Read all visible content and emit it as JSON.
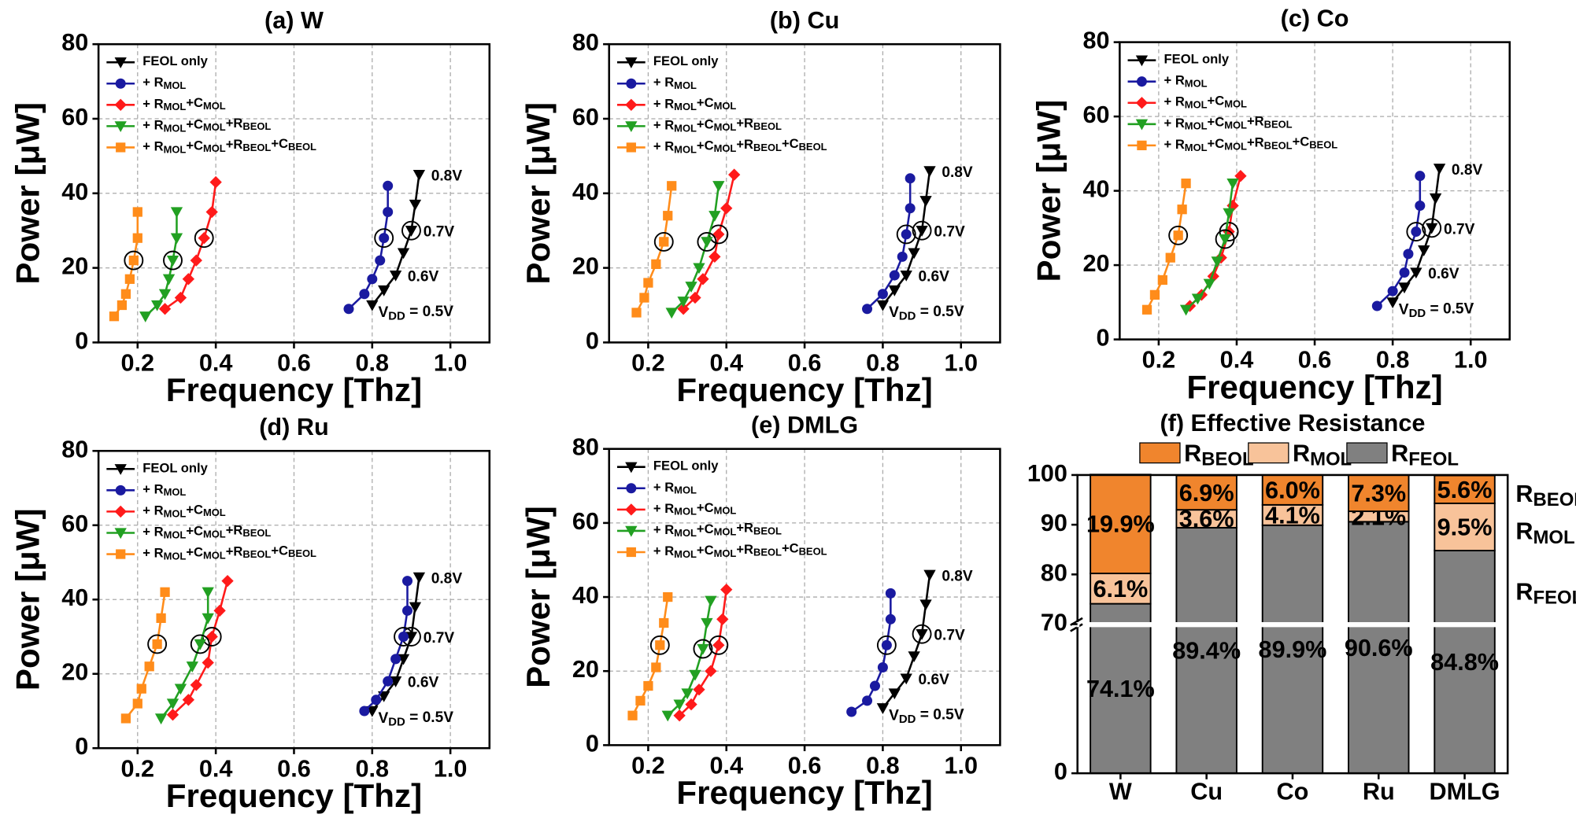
{
  "chart_data": [
    {
      "type": "line",
      "title": "(a) W",
      "x_label": "Frequency [Thz]",
      "y_label": "Power [μW]",
      "xlim": [
        0.1,
        1.1
      ],
      "xticks": [
        0.2,
        0.4,
        0.6,
        0.8,
        {
          "value": 1.0,
          "label": "1.0"
        }
      ],
      "ylim": [
        0,
        80
      ],
      "yticks": [
        0,
        20,
        40,
        60,
        80
      ],
      "grid": true,
      "legend": "upper left",
      "annotations": [
        "0.8V",
        "0.7V",
        "0.6V",
        "VDD = 0.5V"
      ],
      "series": [
        {
          "name": "FEOL only",
          "color": "#000000",
          "marker": "triangle-down",
          "x": [
            0.8,
            0.83,
            0.86,
            0.88,
            0.9,
            0.91,
            0.92
          ],
          "values": [
            10,
            14,
            18,
            24,
            30,
            37,
            45
          ]
        },
        {
          "name": "+ RMOL",
          "color": "#1a1aa0",
          "marker": "circle",
          "x": [
            0.74,
            0.78,
            0.8,
            0.82,
            0.83,
            0.84,
            0.84
          ],
          "values": [
            9,
            13,
            17,
            22,
            28,
            35,
            42
          ]
        },
        {
          "name": "+ RMOL+CMOL",
          "color": "#ff1a1a",
          "marker": "diamond",
          "x": [
            0.27,
            0.31,
            0.33,
            0.35,
            0.37,
            0.39,
            0.4
          ],
          "values": [
            9,
            12,
            17,
            22,
            28,
            35,
            43
          ]
        },
        {
          "name": "+ RMOL+CMOL+RBEOL",
          "color": "#22a022",
          "marker": "triangle-down",
          "x": [
            0.22,
            0.25,
            0.27,
            0.28,
            0.29,
            0.3,
            0.3
          ],
          "values": [
            7,
            10,
            13,
            17,
            22,
            28,
            35
          ]
        },
        {
          "name": "+ RMOL+CMOL+RBEOL+CBEOL",
          "color": "#ff8c1a",
          "marker": "square",
          "x": [
            0.14,
            0.16,
            0.17,
            0.18,
            0.19,
            0.2,
            0.2
          ],
          "values": [
            7,
            10,
            13,
            17,
            22,
            28,
            35
          ]
        }
      ]
    },
    {
      "type": "line",
      "title": "(b) Cu",
      "x_label": "Frequency [Thz]",
      "y_label": "Power [μW]",
      "xlim": [
        0.1,
        1.1
      ],
      "xticks": [
        0.2,
        0.4,
        0.6,
        0.8,
        {
          "value": 1.0,
          "label": "1.0"
        }
      ],
      "ylim": [
        0,
        80
      ],
      "yticks": [
        0,
        20,
        40,
        60,
        80
      ],
      "grid": true,
      "legend": "upper left",
      "annotations": [
        "0.8V",
        "0.7V",
        "0.6V",
        "VDD = 0.5V"
      ],
      "series": [
        {
          "name": "FEOL only",
          "color": "#000000",
          "marker": "triangle-down",
          "x": [
            0.8,
            0.83,
            0.86,
            0.88,
            0.9,
            0.91,
            0.92
          ],
          "values": [
            10,
            14,
            18,
            24,
            30,
            38,
            46
          ]
        },
        {
          "name": "+ RMOL",
          "color": "#1a1aa0",
          "marker": "circle",
          "x": [
            0.76,
            0.8,
            0.83,
            0.85,
            0.86,
            0.87,
            0.87
          ],
          "values": [
            9,
            13,
            18,
            23,
            29,
            36,
            44
          ]
        },
        {
          "name": "+ RMOL+CMOL",
          "color": "#ff1a1a",
          "marker": "diamond",
          "x": [
            0.29,
            0.32,
            0.34,
            0.37,
            0.38,
            0.4,
            0.42
          ],
          "values": [
            9,
            12,
            17,
            23,
            29,
            36,
            45
          ]
        },
        {
          "name": "+ RMOL+CMOL+RBEOL",
          "color": "#22a022",
          "marker": "triangle-down",
          "x": [
            0.26,
            0.29,
            0.31,
            0.33,
            0.35,
            0.37,
            0.38
          ],
          "values": [
            8,
            11,
            15,
            20,
            27,
            34,
            42
          ]
        },
        {
          "name": "+ RMOL+CMOL+RBEOL+CBEOL",
          "color": "#ff8c1a",
          "marker": "square",
          "x": [
            0.17,
            0.19,
            0.2,
            0.22,
            0.24,
            0.25,
            0.26
          ],
          "values": [
            8,
            12,
            16,
            21,
            27,
            34,
            42
          ]
        }
      ]
    },
    {
      "type": "line",
      "title": "(c) Co",
      "x_label": "Frequency [Thz]",
      "y_label": "Power [μW]",
      "xlim": [
        0.1,
        1.1
      ],
      "xticks": [
        0.2,
        0.4,
        0.6,
        0.8,
        {
          "value": 1.0,
          "label": "1.0"
        }
      ],
      "ylim": [
        0,
        80
      ],
      "yticks": [
        0,
        20,
        40,
        60,
        80
      ],
      "grid": true,
      "legend": "upper left",
      "annotations": [
        "0.8V",
        "0.7V",
        "0.6V",
        "VDD = 0.5V"
      ],
      "series": [
        {
          "name": "FEOL only",
          "color": "#000000",
          "marker": "triangle-down",
          "x": [
            0.8,
            0.83,
            0.86,
            0.88,
            0.9,
            0.91,
            0.92
          ],
          "values": [
            10,
            14,
            18,
            24,
            30,
            38,
            46
          ]
        },
        {
          "name": "+ RMOL",
          "color": "#1a1aa0",
          "marker": "circle",
          "x": [
            0.76,
            0.8,
            0.83,
            0.84,
            0.86,
            0.87,
            0.87
          ],
          "values": [
            9,
            13,
            18,
            23,
            29,
            36,
            44
          ]
        },
        {
          "name": "+ RMOL+CMOL",
          "color": "#ff1a1a",
          "marker": "diamond",
          "x": [
            0.28,
            0.31,
            0.34,
            0.36,
            0.38,
            0.39,
            0.41
          ],
          "values": [
            9,
            12,
            17,
            22,
            29,
            36,
            44
          ]
        },
        {
          "name": "+ RMOL+CMOL+RBEOL",
          "color": "#22a022",
          "marker": "triangle-down",
          "x": [
            0.27,
            0.3,
            0.33,
            0.35,
            0.37,
            0.38,
            0.39
          ],
          "values": [
            8,
            11,
            15,
            21,
            27,
            34,
            42
          ]
        },
        {
          "name": "+ RMOL+CMOL+RBEOL+CBEOL",
          "color": "#ff8c1a",
          "marker": "square",
          "x": [
            0.17,
            0.19,
            0.21,
            0.23,
            0.25,
            0.26,
            0.27
          ],
          "values": [
            8,
            12,
            16,
            22,
            28,
            35,
            42
          ]
        }
      ]
    },
    {
      "type": "line",
      "title": "(d) Ru",
      "x_label": "Frequency [Thz]",
      "y_label": "Power [μW]",
      "xlim": [
        0.1,
        1.1
      ],
      "xticks": [
        0.2,
        0.4,
        0.6,
        0.8,
        {
          "value": 1.0,
          "label": "1.0"
        }
      ],
      "ylim": [
        0,
        80
      ],
      "yticks": [
        0,
        20,
        40,
        60,
        80
      ],
      "grid": true,
      "legend": "upper left",
      "annotations": [
        "0.8V",
        "0.7V",
        "0.6V",
        "VDD = 0.5V"
      ],
      "series": [
        {
          "name": "FEOL only",
          "color": "#000000",
          "marker": "triangle-down",
          "x": [
            0.8,
            0.83,
            0.86,
            0.88,
            0.9,
            0.91,
            0.92
          ],
          "values": [
            10,
            14,
            18,
            24,
            30,
            38,
            46
          ]
        },
        {
          "name": "+ RMOL",
          "color": "#1a1aa0",
          "marker": "circle",
          "x": [
            0.78,
            0.81,
            0.84,
            0.86,
            0.88,
            0.89,
            0.89
          ],
          "values": [
            10,
            13,
            18,
            24,
            30,
            37,
            45
          ]
        },
        {
          "name": "+ RMOL+CMOL",
          "color": "#ff1a1a",
          "marker": "diamond",
          "x": [
            0.29,
            0.33,
            0.35,
            0.38,
            0.39,
            0.41,
            0.43
          ],
          "values": [
            9,
            13,
            17,
            23,
            30,
            37,
            45
          ]
        },
        {
          "name": "+ RMOL+CMOL+RBEOL",
          "color": "#22a022",
          "marker": "triangle-down",
          "x": [
            0.26,
            0.29,
            0.31,
            0.34,
            0.36,
            0.38,
            0.38
          ],
          "values": [
            8,
            12,
            16,
            22,
            28,
            35,
            42
          ]
        },
        {
          "name": "+ RMOL+CMOL+RBEOL+CBEOL",
          "color": "#ff8c1a",
          "marker": "square",
          "x": [
            0.17,
            0.2,
            0.21,
            0.23,
            0.25,
            0.26,
            0.27
          ],
          "values": [
            8,
            12,
            16,
            22,
            28,
            35,
            42
          ]
        }
      ]
    },
    {
      "type": "line",
      "title": "(e) DMLG",
      "x_label": "Frequency [Thz]",
      "y_label": "Power [μW]",
      "xlim": [
        0.1,
        1.1
      ],
      "xticks": [
        0.2,
        0.4,
        0.6,
        0.8,
        {
          "value": 1.0,
          "label": "1.0"
        }
      ],
      "ylim": [
        0,
        80
      ],
      "yticks": [
        0,
        20,
        40,
        60,
        80
      ],
      "grid": true,
      "legend": "upper left",
      "annotations": [
        "0.8V",
        "0.7V",
        "0.6V",
        "VDD = 0.5V"
      ],
      "series": [
        {
          "name": "FEOL only",
          "color": "#000000",
          "marker": "triangle-down",
          "x": [
            0.8,
            0.83,
            0.86,
            0.88,
            0.9,
            0.91,
            0.92
          ],
          "values": [
            10,
            14,
            18,
            24,
            30,
            38,
            46
          ]
        },
        {
          "name": "+ RMOL",
          "color": "#1a1aa0",
          "marker": "circle",
          "x": [
            0.72,
            0.76,
            0.78,
            0.8,
            0.81,
            0.82,
            0.82
          ],
          "values": [
            9,
            12,
            16,
            21,
            27,
            34,
            41
          ]
        },
        {
          "name": "+ RMOL+CMOL",
          "color": "#ff1a1a",
          "marker": "diamond",
          "x": [
            0.28,
            0.31,
            0.33,
            0.36,
            0.38,
            0.39,
            0.4
          ],
          "values": [
            8,
            11,
            15,
            20,
            27,
            34,
            42
          ]
        },
        {
          "name": "+ RMOL+CMOL+RBEOL",
          "color": "#22a022",
          "marker": "triangle-down",
          "x": [
            0.25,
            0.28,
            0.3,
            0.32,
            0.34,
            0.35,
            0.36
          ],
          "values": [
            8,
            11,
            14,
            19,
            26,
            33,
            39
          ]
        },
        {
          "name": "+ RMOL+CMOL+RBEOL+CBEOL",
          "color": "#ff8c1a",
          "marker": "square",
          "x": [
            0.16,
            0.18,
            0.2,
            0.22,
            0.23,
            0.24,
            0.25
          ],
          "values": [
            8,
            12,
            16,
            21,
            27,
            33,
            40
          ]
        }
      ]
    },
    {
      "type": "stacked-bar",
      "title": "(f) Effective Resistance",
      "categories": [
        "W",
        "Cu",
        "Co",
        "Ru",
        "DMLG"
      ],
      "ylim": [
        0,
        100
      ],
      "axis_break": 70,
      "yticks": [
        0,
        70,
        80,
        90,
        100
      ],
      "series": [
        {
          "name": "RBEOL",
          "color": "#f0852d",
          "values": [
            19.9,
            6.9,
            6.0,
            7.3,
            5.6
          ],
          "value_labels": [
            "19.9%",
            "6.9%",
            "6.0%",
            "7.3%",
            "5.6%"
          ]
        },
        {
          "name": "RMOL",
          "color": "#f8c39a",
          "values": [
            6.1,
            3.6,
            4.1,
            2.1,
            9.5
          ],
          "value_labels": [
            "6.1%",
            "3.6%",
            "4.1%",
            "2.1%",
            "9.5%"
          ]
        },
        {
          "name": "RFEOL",
          "color": "#808080",
          "values": [
            74.1,
            89.4,
            89.9,
            90.6,
            84.8
          ],
          "value_labels": [
            "74.1%",
            "89.4%",
            "89.9%",
            "90.6%",
            "84.8%"
          ]
        }
      ]
    }
  ]
}
